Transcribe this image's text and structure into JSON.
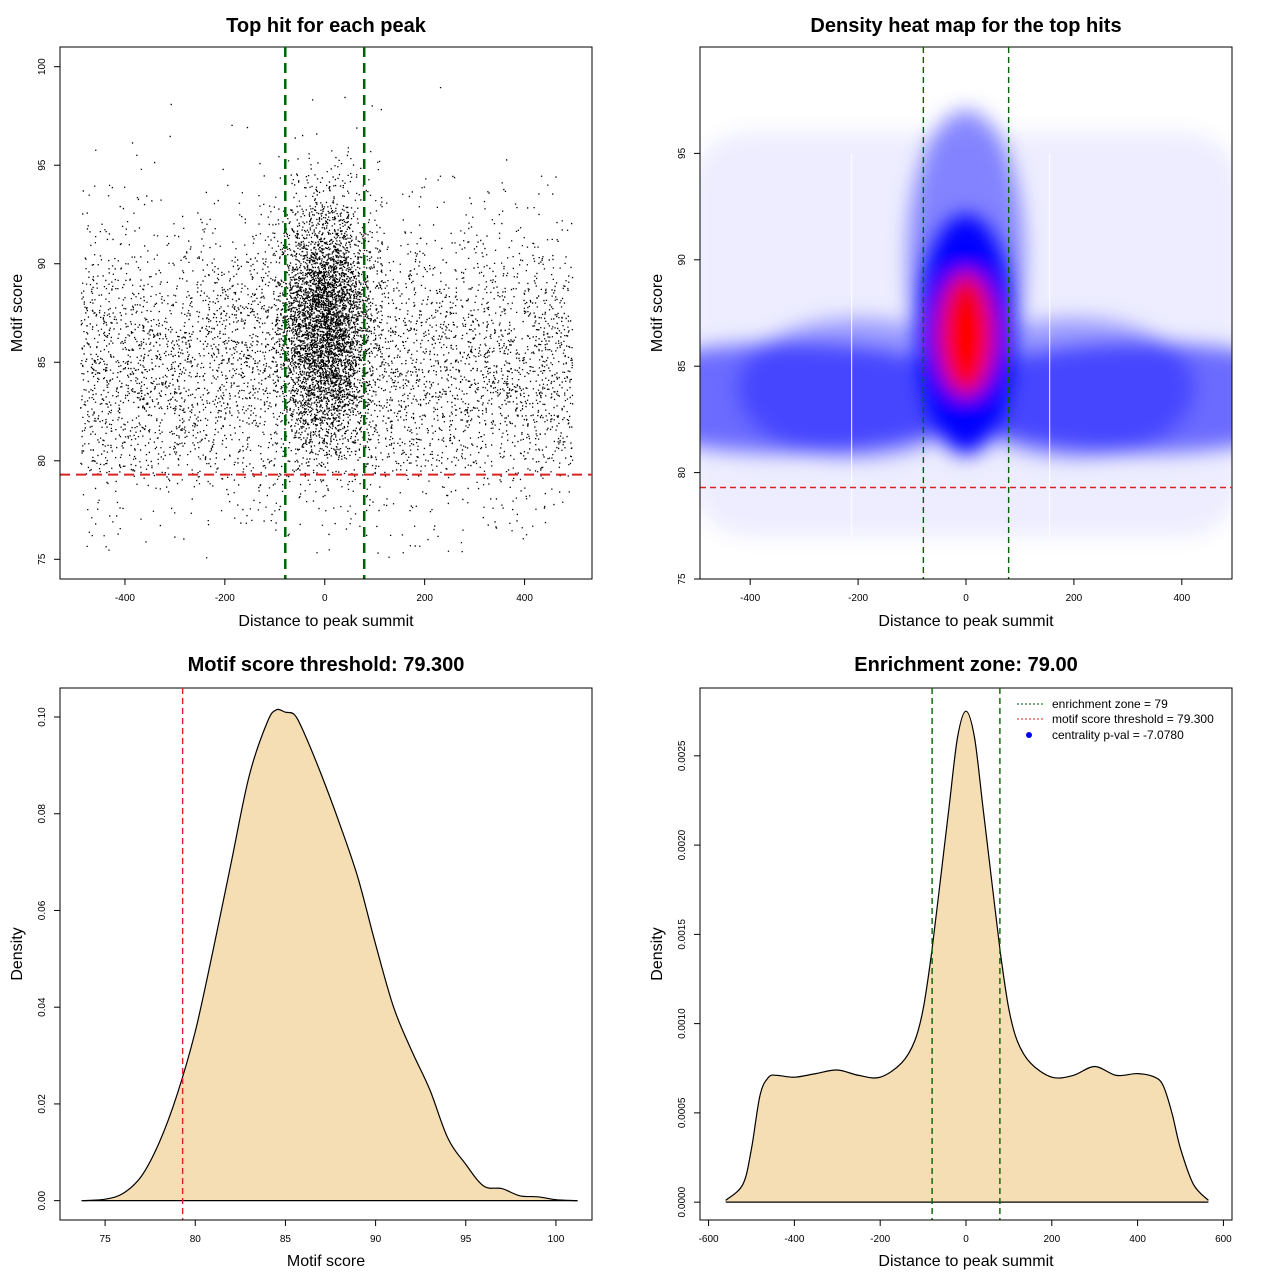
{
  "chart_data": [
    {
      "id": "scatter",
      "type": "scatter",
      "title": "Top hit for each peak",
      "xlabel": "Distance to peak summit",
      "ylabel": "Motif score",
      "xlim": [
        -530,
        535
      ],
      "ylim": [
        74,
        101
      ],
      "xticks": [
        -400,
        -200,
        0,
        200,
        400
      ],
      "yticks": [
        75,
        80,
        85,
        90,
        95,
        100
      ],
      "xtick_labels": [
        "-400",
        "-200",
        "0",
        "200",
        "400"
      ],
      "ytick_labels": [
        "75",
        "80",
        "85",
        "90",
        "95",
        "100"
      ],
      "point_color": "#000000",
      "n_background_points": 11000,
      "n_central_points": 4500,
      "x_range": [
        -490,
        495
      ],
      "background_score_mean": 84.5,
      "background_score_sd": 3.8,
      "central_score_mean": 87.0,
      "central_score_sd": 3.0,
      "central_x_sd": 45,
      "enrichment_zone": [
        -79,
        79
      ],
      "threshold": 79.3,
      "zone_color": "#006400",
      "threshold_color": "#dd2222",
      "grid": false
    },
    {
      "id": "heatmap",
      "type": "heatmap",
      "title": "Density heat map for the top hits",
      "xlabel": "Distance to peak summit",
      "ylabel": "Motif score",
      "xlim": [
        -493,
        493
      ],
      "ylim": [
        75,
        100
      ],
      "xticks": [
        -400,
        -200,
        0,
        200,
        400
      ],
      "yticks": [
        75,
        80,
        85,
        90,
        95
      ],
      "xtick_labels": [
        "-400",
        "-200",
        "0",
        "200",
        "400"
      ],
      "ytick_labels": [
        "75",
        "80",
        "85",
        "90",
        "95"
      ],
      "colors": [
        "#ffffff",
        "#0000ff",
        "#ff0000"
      ],
      "peak_center": [
        0,
        86.5
      ],
      "background_center_score": 83.5,
      "enrichment_zone": [
        -79,
        79
      ],
      "threshold": 79.3,
      "zone_color": "#006400",
      "threshold_color": "#dd2222",
      "grid": false
    },
    {
      "id": "score-density",
      "type": "area",
      "title": "Motif score threshold: 79.300",
      "xlabel": "Motif score",
      "ylabel": "Density",
      "xlim": [
        72.5,
        102
      ],
      "ylim": [
        -0.004,
        0.106
      ],
      "xticks": [
        75,
        80,
        85,
        90,
        95,
        100
      ],
      "yticks": [
        0.0,
        0.02,
        0.04,
        0.06,
        0.08,
        0.1
      ],
      "xtick_labels": [
        "75",
        "80",
        "85",
        "90",
        "95",
        "100"
      ],
      "ytick_labels": [
        "0.00",
        "0.02",
        "0.04",
        "0.06",
        "0.08",
        "0.10"
      ],
      "x": [
        73.7,
        75.0,
        76.0,
        77.0,
        78.0,
        79.0,
        80.0,
        81.0,
        82.0,
        83.0,
        84.0,
        84.5,
        85.0,
        85.5,
        86.0,
        87.0,
        88.0,
        89.0,
        90.0,
        91.0,
        92.0,
        93.0,
        94.0,
        95.0,
        96.0,
        97.0,
        98.0,
        99.0,
        100.0,
        101.2
      ],
      "y": [
        0.0,
        0.0003,
        0.0015,
        0.005,
        0.012,
        0.022,
        0.035,
        0.052,
        0.07,
        0.088,
        0.099,
        0.1015,
        0.101,
        0.1005,
        0.097,
        0.088,
        0.078,
        0.067,
        0.053,
        0.04,
        0.031,
        0.023,
        0.013,
        0.0075,
        0.003,
        0.0025,
        0.001,
        0.0008,
        0.0002,
        0.0
      ],
      "threshold": 79.3,
      "fill_color": "#f5deb3",
      "line_color": "#000000",
      "threshold_color": "#dd2222",
      "grid": false
    },
    {
      "id": "distance-density",
      "type": "area",
      "title": "Enrichment zone: 79.00",
      "xlabel": "Distance to peak summit",
      "ylabel": "Density",
      "xlim": [
        -620,
        620
      ],
      "ylim": [
        -0.0001,
        0.00288
      ],
      "xticks": [
        -600,
        -400,
        -200,
        0,
        200,
        400,
        600
      ],
      "yticks": [
        0.0,
        0.0005,
        0.001,
        0.0015,
        0.002,
        0.0025
      ],
      "xtick_labels": [
        "-600",
        "-400",
        "-200",
        "0",
        "200",
        "400",
        "600"
      ],
      "ytick_labels": [
        "0.0000",
        "0.0005",
        "0.0010",
        "0.0015",
        "0.0020",
        "0.0025"
      ],
      "x": [
        -560,
        -520,
        -500,
        -480,
        -460,
        -440,
        -400,
        -350,
        -300,
        -250,
        -200,
        -150,
        -120,
        -100,
        -80,
        -60,
        -40,
        -20,
        0,
        20,
        40,
        60,
        80,
        100,
        120,
        150,
        200,
        250,
        300,
        350,
        400,
        440,
        460,
        480,
        500,
        530,
        565
      ],
      "y": [
        1e-05,
        0.0001,
        0.0003,
        0.0006,
        0.0007,
        0.00071,
        0.0007,
        0.00072,
        0.00074,
        0.00071,
        0.0007,
        0.00078,
        0.0009,
        0.00108,
        0.0014,
        0.0018,
        0.0022,
        0.0026,
        0.00275,
        0.0026,
        0.0022,
        0.0018,
        0.0014,
        0.00108,
        0.0009,
        0.00078,
        0.0007,
        0.00071,
        0.00076,
        0.00071,
        0.00072,
        0.0007,
        0.00065,
        0.0005,
        0.0003,
        0.0001,
        1e-05
      ],
      "zone": [
        -79,
        79
      ],
      "fill_color": "#f5deb3",
      "line_color": "#000000",
      "zone_color": "#006400",
      "legend_position": "top-right",
      "legend": [
        {
          "label": "enrichment zone = 79",
          "color": "#006400",
          "kind": "dotted-line"
        },
        {
          "label": "motif score threshold = 79.300",
          "color": "#dd2222",
          "kind": "dotted-line"
        },
        {
          "label": "centrality p-val = -7.0780",
          "color": "#0000ff",
          "kind": "point"
        }
      ],
      "grid": false
    }
  ]
}
